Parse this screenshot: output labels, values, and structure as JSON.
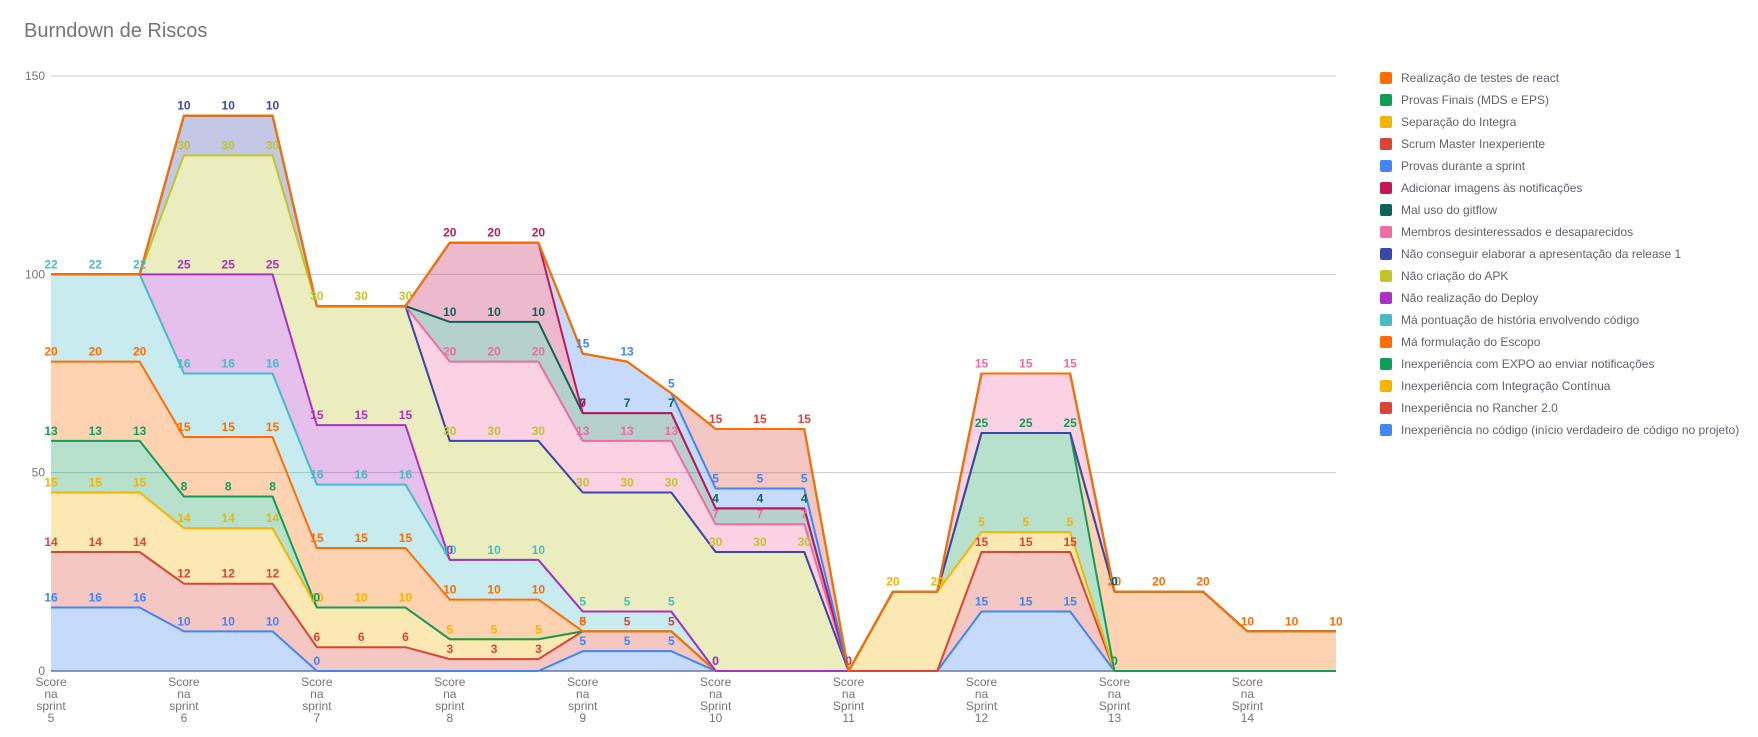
{
  "chart_data": {
    "type": "area",
    "stacked": true,
    "title": "Burndown de Riscos",
    "xlabel": "",
    "ylabel": "",
    "ylim": [
      0,
      150
    ],
    "yticks": [
      0,
      50,
      100,
      150
    ],
    "grid": true,
    "legend_position": "right",
    "x_tick_labels": [
      [
        "Score",
        "na",
        "sprint",
        "5"
      ],
      [
        "Score",
        "na",
        "sprint",
        "6"
      ],
      [
        "Score",
        "na",
        "sprint",
        "7"
      ],
      [
        "Score",
        "na",
        "sprint",
        "8"
      ],
      [
        "Score",
        "na",
        "sprint",
        "9"
      ],
      [
        "Score",
        "na",
        "Sprint",
        "10"
      ],
      [
        "Score",
        "na",
        "Sprint",
        "11"
      ],
      [
        "Score",
        "na",
        "Sprint",
        "12"
      ],
      [
        "Score",
        "na",
        "Sprint",
        "13"
      ],
      [
        "Score",
        "na",
        "Sprint",
        "14"
      ]
    ],
    "points_per_sprint": 3,
    "series": [
      {
        "name": "Inexperiência no código (início verdadeiro de código no projeto)",
        "color": "#4285f4",
        "values": [
          16,
          16,
          16,
          10,
          10,
          10,
          0,
          null,
          null,
          null,
          null,
          null,
          5,
          5,
          5,
          0,
          null,
          null,
          0,
          null,
          null,
          15,
          15,
          15,
          0,
          null,
          null,
          null,
          null,
          null
        ]
      },
      {
        "name": "Inexperiência no Rancher 2.0",
        "color": "#db4437",
        "values": [
          14,
          14,
          14,
          12,
          12,
          12,
          6,
          6,
          6,
          3,
          3,
          3,
          5,
          5,
          5,
          0,
          null,
          null,
          0,
          null,
          null,
          15,
          15,
          15,
          0,
          null,
          null,
          null,
          null,
          null
        ]
      },
      {
        "name": "Inexperiência com Integração Contínua",
        "color": "#f4b400",
        "values": [
          15,
          15,
          15,
          14,
          14,
          14,
          10,
          10,
          10,
          5,
          5,
          5,
          0,
          null,
          null,
          null,
          null,
          null,
          0,
          20,
          20,
          5,
          5,
          5,
          0,
          null,
          null,
          null,
          null,
          null
        ]
      },
      {
        "name": "Inexperiência com EXPO ao enviar notificações",
        "color": "#0f9d58",
        "values": [
          13,
          13,
          13,
          8,
          8,
          8,
          0,
          null,
          null,
          null,
          null,
          null,
          null,
          null,
          null,
          null,
          null,
          null,
          null,
          null,
          null,
          25,
          25,
          25,
          0,
          null,
          null,
          null,
          null,
          null
        ]
      },
      {
        "name": "Má formulação do Escopo",
        "color": "#ff6d01",
        "values": [
          20,
          20,
          20,
          15,
          15,
          15,
          15,
          15,
          15,
          10,
          10,
          10,
          0,
          null,
          null,
          0,
          null,
          null,
          null,
          null,
          null,
          null,
          null,
          null,
          20,
          20,
          20,
          10,
          10,
          10
        ]
      },
      {
        "name": "Má pontuação de história envolvendo código",
        "color": "#46bdc6",
        "values": [
          22,
          22,
          22,
          16,
          16,
          16,
          16,
          16,
          16,
          10,
          10,
          10,
          5,
          5,
          5,
          0,
          null,
          null,
          null,
          null,
          null,
          null,
          null,
          null,
          null,
          null,
          null,
          null,
          null,
          null
        ]
      },
      {
        "name": "Não realização do Deploy",
        "color": "#ab30c4",
        "values": [
          null,
          null,
          null,
          25,
          25,
          25,
          15,
          15,
          15,
          0,
          null,
          null,
          null,
          null,
          null,
          0,
          null,
          null,
          null,
          null,
          null,
          null,
          null,
          null,
          null,
          null,
          null,
          null,
          null,
          null
        ]
      },
      {
        "name": "Não criação do APK",
        "color": "#c0c52a",
        "values": [
          null,
          null,
          null,
          30,
          30,
          30,
          30,
          30,
          30,
          30,
          30,
          30,
          30,
          30,
          30,
          30,
          30,
          30,
          null,
          null,
          null,
          null,
          null,
          null,
          null,
          null,
          null,
          null,
          null,
          null
        ]
      },
      {
        "name": "Não conseguir elaborar a apresentação da release 1",
        "color": "#3949ab",
        "values": [
          null,
          null,
          null,
          10,
          10,
          10,
          null,
          null,
          null,
          null,
          null,
          null,
          null,
          null,
          null,
          null,
          null,
          null,
          null,
          null,
          null,
          null,
          null,
          null,
          null,
          null,
          null,
          null,
          null,
          null
        ]
      },
      {
        "name": "Membros desinteressados e desaparecidos",
        "color": "#f06aa3",
        "values": [
          null,
          null,
          null,
          null,
          null,
          null,
          null,
          null,
          null,
          20,
          20,
          20,
          13,
          13,
          13,
          7,
          7,
          7,
          0,
          null,
          null,
          15,
          15,
          15,
          0,
          null,
          null,
          null,
          null,
          null
        ]
      },
      {
        "name": "Mal uso do gitflow",
        "color": "#0b6458",
        "values": [
          null,
          null,
          null,
          null,
          null,
          null,
          null,
          null,
          null,
          10,
          10,
          10,
          7,
          7,
          7,
          4,
          4,
          4,
          0,
          null,
          null,
          null,
          null,
          null,
          0,
          null,
          null,
          null,
          null,
          null
        ]
      },
      {
        "name": "Adicionar imagens às notificações",
        "color": "#c2185b",
        "values": [
          null,
          null,
          null,
          null,
          null,
          null,
          null,
          null,
          null,
          20,
          20,
          20,
          0,
          null,
          null,
          null,
          null,
          null,
          null,
          null,
          null,
          null,
          null,
          null,
          null,
          null,
          null,
          null,
          null,
          null
        ]
      },
      {
        "name": "Provas durante a sprint",
        "color": "#4285f4",
        "values": [
          null,
          null,
          null,
          null,
          null,
          null,
          null,
          null,
          null,
          null,
          null,
          null,
          15,
          13,
          5,
          5,
          5,
          5,
          0,
          null,
          null,
          null,
          null,
          null,
          null,
          null,
          null,
          null,
          null,
          null
        ]
      },
      {
        "name": "Scrum Master Inexperiente",
        "color": "#db4437",
        "values": [
          null,
          null,
          null,
          null,
          null,
          null,
          null,
          null,
          null,
          null,
          null,
          null,
          null,
          null,
          null,
          15,
          15,
          15,
          0,
          null,
          null,
          null,
          null,
          null,
          null,
          null,
          null,
          null,
          null,
          null
        ]
      },
      {
        "name": "Separação do Integra",
        "color": "#f4b400",
        "values": [
          null,
          null,
          null,
          null,
          null,
          null,
          null,
          null,
          null,
          null,
          null,
          null,
          null,
          null,
          null,
          null,
          null,
          null,
          null,
          null,
          null,
          null,
          null,
          null,
          null,
          null,
          null,
          null,
          null,
          null
        ]
      },
      {
        "name": "Provas Finais (MDS e EPS)",
        "color": "#0f9d58",
        "values": [
          null,
          null,
          null,
          null,
          null,
          null,
          null,
          null,
          null,
          null,
          null,
          null,
          null,
          null,
          null,
          null,
          null,
          null,
          null,
          null,
          null,
          null,
          null,
          null,
          null,
          null,
          null,
          null,
          null,
          null
        ]
      },
      {
        "name": "Realização de testes de react",
        "color": "#ff6d01",
        "values": [
          null,
          null,
          null,
          null,
          null,
          null,
          null,
          null,
          null,
          null,
          null,
          null,
          null,
          null,
          null,
          null,
          null,
          null,
          null,
          null,
          null,
          null,
          null,
          null,
          null,
          null,
          null,
          null,
          null,
          null
        ]
      }
    ],
    "legend_order": [
      16,
      15,
      14,
      13,
      12,
      11,
      10,
      9,
      8,
      7,
      6,
      5,
      4,
      3,
      2,
      1,
      0
    ]
  }
}
